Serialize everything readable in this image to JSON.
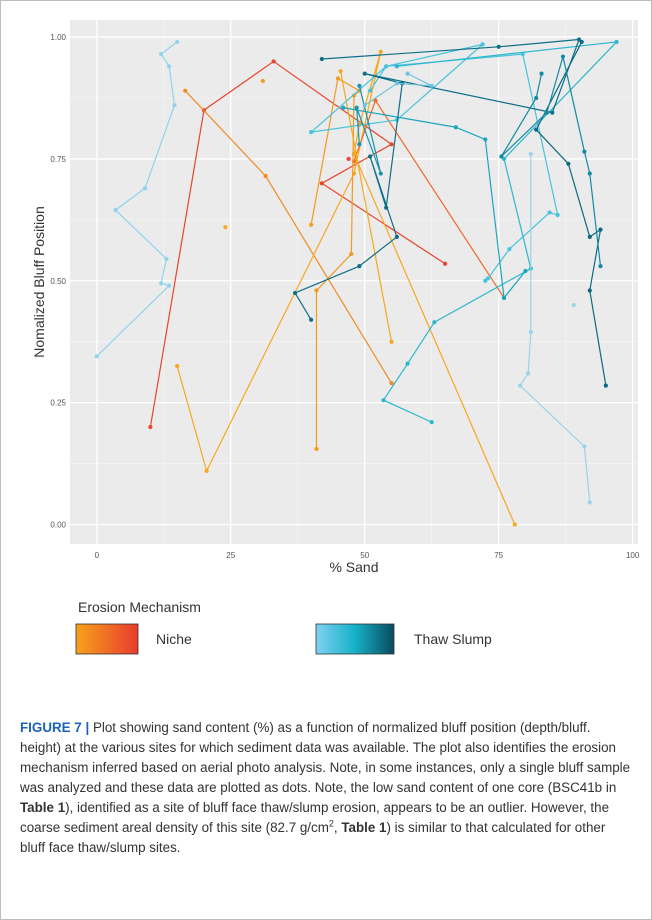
{
  "chart_data": {
    "type": "line",
    "xlabel": "% Sand",
    "ylabel": "Nomalized Bluff Position",
    "xlim": [
      -5,
      101
    ],
    "ylim": [
      -0.04,
      1.035
    ],
    "x_ticks": [
      "0",
      "25",
      "50",
      "75",
      "100"
    ],
    "y_ticks": [
      "0.00",
      "0.25",
      "0.50",
      "0.75",
      "1.00"
    ],
    "grid": true,
    "legend": {
      "title": "Erosion Mechanism",
      "placement": "bottom",
      "entries": [
        {
          "label": "Niche",
          "gradient": [
            "#f7a21b",
            "#e83b2e"
          ]
        },
        {
          "label": "Thaw Slump",
          "gradient": [
            "#7fd2f2",
            "#16b1c9",
            "#0b4a5e"
          ]
        }
      ]
    },
    "series": [
      {
        "group": "niche",
        "color": "#e8452b",
        "points": [
          [
            10,
            0.2
          ],
          [
            20,
            0.85
          ],
          [
            33,
            0.95
          ],
          [
            55,
            0.78
          ],
          [
            42,
            0.7
          ],
          [
            65,
            0.535
          ]
        ]
      },
      {
        "group": "niche",
        "color": "#f28a24",
        "points": [
          [
            16.5,
            0.89
          ],
          [
            31.5,
            0.715
          ],
          [
            55,
            0.29
          ]
        ]
      },
      {
        "group": "niche",
        "color": "#f6a81e",
        "points": [
          [
            15,
            0.325
          ],
          [
            20.5,
            0.11
          ],
          [
            48,
            0.72
          ],
          [
            53,
            0.97
          ],
          [
            49,
            0.82
          ],
          [
            48,
            0.76
          ],
          [
            78,
            0.0
          ]
        ]
      },
      {
        "group": "niche",
        "color": "#ef6a26",
        "points": [
          [
            48,
            0.745
          ],
          [
            52,
            0.87
          ],
          [
            76,
            0.465
          ]
        ]
      },
      {
        "group": "niche",
        "color": "#f39a22",
        "points": [
          [
            40,
            0.615
          ],
          [
            45,
            0.915
          ],
          [
            49,
            0.89
          ],
          [
            48,
            0.88
          ],
          [
            47.5,
            0.555
          ],
          [
            41,
            0.48
          ],
          [
            41,
            0.155
          ]
        ]
      },
      {
        "group": "niche",
        "color": "#f6a81e",
        "points": [
          [
            45.5,
            0.93
          ],
          [
            55,
            0.375
          ]
        ]
      },
      {
        "group": "thaw",
        "color": "#8fd3ee",
        "points": [
          [
            15,
            0.99
          ],
          [
            12,
            0.965
          ],
          [
            13.5,
            0.94
          ],
          [
            14.5,
            0.86
          ],
          [
            9,
            0.69
          ],
          [
            3.5,
            0.645
          ],
          [
            13,
            0.545
          ],
          [
            12,
            0.495
          ],
          [
            13.5,
            0.49
          ],
          [
            0,
            0.345
          ]
        ]
      },
      {
        "group": "thaw",
        "color": "#45c4dc",
        "points": [
          [
            51,
            0.89
          ],
          [
            54,
            0.94
          ],
          [
            72,
            0.985
          ],
          [
            56,
            0.83
          ],
          [
            40,
            0.805
          ],
          [
            54,
            0.94
          ],
          [
            79.5,
            0.965
          ],
          [
            86,
            0.635
          ],
          [
            84.5,
            0.64
          ],
          [
            77,
            0.565
          ],
          [
            73,
            0.505
          ]
        ]
      },
      {
        "group": "thaw",
        "color": "#2bb7cd",
        "points": [
          [
            56,
            0.94
          ],
          [
            97,
            0.99
          ],
          [
            76,
            0.75
          ],
          [
            81,
            0.525
          ],
          [
            63,
            0.415
          ],
          [
            58,
            0.33
          ],
          [
            53.5,
            0.255
          ],
          [
            62.5,
            0.21
          ]
        ]
      },
      {
        "group": "thaw",
        "color": "#1aa5bf",
        "points": [
          [
            46,
            0.855
          ],
          [
            67,
            0.815
          ],
          [
            72.5,
            0.79
          ],
          [
            76,
            0.465
          ],
          [
            80,
            0.52
          ]
        ]
      },
      {
        "group": "thaw",
        "color": "#1793ad",
        "points": [
          [
            49,
            0.9
          ],
          [
            53,
            0.72
          ],
          [
            48.5,
            0.855
          ],
          [
            49,
            0.78
          ]
        ]
      },
      {
        "group": "thaw",
        "color": "#0f6f87",
        "points": [
          [
            42,
            0.955
          ],
          [
            75,
            0.98
          ],
          [
            90,
            0.995
          ],
          [
            85,
            0.845
          ],
          [
            50,
            0.925
          ],
          [
            57,
            0.905
          ],
          [
            54,
            0.65
          ],
          [
            51,
            0.755
          ],
          [
            56,
            0.59
          ],
          [
            49,
            0.53
          ],
          [
            37,
            0.475
          ],
          [
            40,
            0.42
          ]
        ]
      },
      {
        "group": "thaw",
        "color": "#0d6a80",
        "points": [
          [
            90.5,
            0.99
          ],
          [
            82,
            0.81
          ],
          [
            88,
            0.74
          ],
          [
            92,
            0.59
          ],
          [
            94,
            0.605
          ],
          [
            92,
            0.48
          ],
          [
            95,
            0.285
          ]
        ]
      },
      {
        "group": "thaw",
        "color": "#138aa3",
        "points": [
          [
            83,
            0.925
          ],
          [
            82,
            0.875
          ],
          [
            75.5,
            0.755
          ],
          [
            84,
            0.845
          ],
          [
            87,
            0.96
          ],
          [
            91,
            0.765
          ],
          [
            92,
            0.72
          ],
          [
            94,
            0.53
          ]
        ]
      },
      {
        "group": "thaw",
        "color": "#6fc3df",
        "points": [
          [
            58,
            0.925
          ],
          [
            62.5,
            0.9
          ],
          [
            56,
            0.905
          ],
          [
            50,
            0.86
          ]
        ]
      },
      {
        "group": "thaw",
        "color": "#9bd3ea",
        "points": [
          [
            81,
            0.76
          ],
          [
            81,
            0.395
          ],
          [
            80.5,
            0.31
          ],
          [
            79,
            0.285
          ],
          [
            91,
            0.16
          ],
          [
            92,
            0.045
          ]
        ]
      }
    ],
    "single_points": [
      {
        "group": "niche",
        "color": "#f39a22",
        "x": 31,
        "y": 0.91
      },
      {
        "group": "niche",
        "color": "#f6a81e",
        "x": 24,
        "y": 0.61
      },
      {
        "group": "niche",
        "color": "#e8452b",
        "x": 47,
        "y": 0.75
      },
      {
        "group": "thaw",
        "color": "#9bd3ea",
        "x": 89,
        "y": 0.45
      },
      {
        "group": "thaw",
        "color": "#45c4dc",
        "x": 72.5,
        "y": 0.5
      }
    ]
  },
  "caption": {
    "figure_label": "FIGURE 7 |",
    "part1": " Plot showing sand content (%) as a function of normalized bluff position (depth/bluff. height) at the various sites for which sediment data was available. The plot also identifies the erosion mechanism inferred based on aerial photo analysis. Note, in some instances, only a single bluff sample was analyzed and these data are plotted as dots. Note, the low sand content of one core (BSC41b in ",
    "ref1": "Table 1",
    "part2": "), identified as a site of bluff face thaw/slump erosion, appears to be an outlier. However, the coarse sediment areal density of this site (82.7 g/cm",
    "sup": "2",
    "part3": ", ",
    "ref2": "Table 1",
    "part4": ") is similar to that calculated for other bluff face thaw/slump sites."
  }
}
